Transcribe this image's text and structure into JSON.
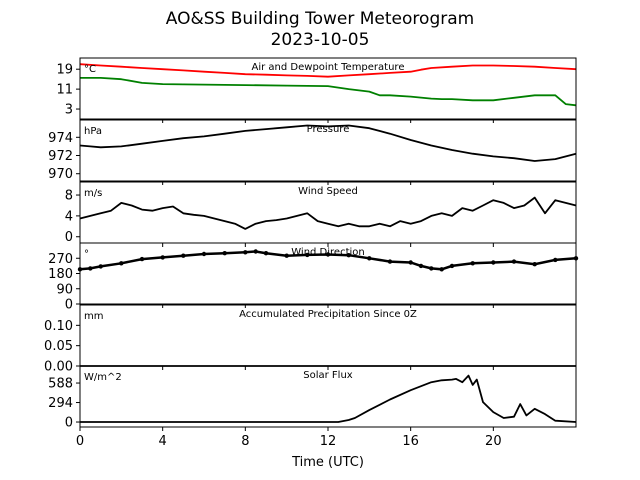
{
  "figure": {
    "title": "AO&SS Building Tower Meteorogram",
    "subtitle": "2023-10-05",
    "xlabel": "Time (UTC)"
  },
  "chart_data": [
    {
      "type": "line",
      "title": "Air and Dewpoint Temperature",
      "unit": "°C",
      "yticks": [
        3,
        11,
        19
      ],
      "ylim": [
        -1,
        23.5
      ],
      "xlim": [
        0,
        24
      ],
      "series": [
        {
          "color": "#ff0000",
          "x": [
            0,
            1,
            2,
            3,
            4,
            5,
            6,
            7,
            8,
            9,
            10,
            11,
            12,
            13,
            14,
            15,
            16,
            16.5,
            17,
            18,
            19,
            20,
            21,
            22,
            23,
            24
          ],
          "y": [
            21,
            20.5,
            20,
            19.5,
            19,
            18.5,
            18,
            17.5,
            17,
            16.8,
            16.5,
            16.3,
            16,
            16.5,
            17,
            17.5,
            18,
            18.8,
            19.5,
            20,
            20.5,
            20.5,
            20.3,
            20,
            19.5,
            19
          ]
        },
        {
          "color": "#008000",
          "x": [
            0,
            1,
            2,
            3,
            4,
            6,
            8,
            10,
            11,
            12,
            13,
            14,
            14.5,
            15,
            16,
            17,
            17.5,
            18,
            19,
            20,
            21,
            22,
            23,
            23.5,
            24
          ],
          "y": [
            15.5,
            15.5,
            15,
            13.5,
            13,
            12.8,
            12.6,
            12.4,
            12.3,
            12.2,
            11,
            10,
            8.5,
            8.5,
            8,
            7.2,
            7,
            7,
            6.5,
            6.5,
            7.5,
            8.5,
            8.5,
            5,
            4.5
          ]
        }
      ]
    },
    {
      "type": "line",
      "title": "Pressure",
      "unit": "hPa",
      "yticks": [
        970,
        972,
        974
      ],
      "ylim": [
        969.2,
        975.9
      ],
      "xlim": [
        0,
        24
      ],
      "series": [
        {
          "color": "#000000",
          "x": [
            0,
            0.5,
            1,
            2,
            3,
            4,
            5,
            6,
            7,
            8,
            9,
            10,
            11,
            12,
            13,
            14,
            15,
            16,
            17,
            18,
            19,
            20,
            21,
            22,
            23,
            24
          ],
          "y": [
            973.1,
            973.0,
            972.9,
            973.0,
            973.3,
            973.6,
            973.9,
            974.1,
            974.4,
            974.7,
            974.9,
            975.1,
            975.3,
            975.2,
            975.3,
            975.0,
            974.4,
            973.7,
            973.1,
            972.6,
            972.2,
            971.9,
            971.7,
            971.4,
            971.6,
            972.2
          ]
        }
      ]
    },
    {
      "type": "line",
      "title": "Wind Speed",
      "unit": "m/s",
      "yticks": [
        0,
        4,
        8
      ],
      "ylim": [
        -1.2,
        10.5
      ],
      "xlim": [
        0,
        24
      ],
      "series": [
        {
          "color": "#000000",
          "x": [
            0,
            0.5,
            1,
            1.5,
            2,
            2.5,
            3,
            3.5,
            4,
            4.5,
            5,
            5.5,
            6,
            6.5,
            7,
            7.5,
            8,
            8.5,
            9,
            9.5,
            10,
            10.5,
            11,
            11.5,
            12,
            12.5,
            13,
            13.5,
            14,
            14.5,
            15,
            15.5,
            16,
            16.5,
            17,
            17.5,
            18,
            18.5,
            19,
            19.5,
            20,
            20.5,
            21,
            21.5,
            22,
            22.5,
            23,
            23.5,
            24
          ],
          "y": [
            3.5,
            4.0,
            4.5,
            5.0,
            6.5,
            6.0,
            5.2,
            5.0,
            5.5,
            5.8,
            4.5,
            4.2,
            4.0,
            3.5,
            3.0,
            2.5,
            1.5,
            2.5,
            3.0,
            3.2,
            3.5,
            4.0,
            4.5,
            3.0,
            2.5,
            2.0,
            2.5,
            2.0,
            2.0,
            2.5,
            2.0,
            3.0,
            2.5,
            3.0,
            4.0,
            4.5,
            4.0,
            5.5,
            5.0,
            6.0,
            7.0,
            6.5,
            5.5,
            6.0,
            7.5,
            4.5,
            7.0,
            6.5,
            6.0
          ]
        }
      ]
    },
    {
      "type": "scatter",
      "title": "Wind Direction",
      "unit": "°",
      "yticks": [
        0,
        90,
        180,
        270
      ],
      "ylim": [
        0,
        360
      ],
      "xlim": [
        0,
        24
      ],
      "series": [
        {
          "color": "#000000",
          "x": [
            0,
            0.5,
            1,
            2,
            3,
            4,
            5,
            6,
            7,
            8,
            8.5,
            9,
            10,
            11,
            12,
            13,
            14,
            15,
            16,
            16.5,
            17,
            17.5,
            18,
            19,
            20,
            21,
            22,
            23,
            24
          ],
          "y": [
            205,
            210,
            222,
            240,
            265,
            275,
            285,
            295,
            300,
            305,
            310,
            300,
            285,
            290,
            292,
            288,
            270,
            250,
            245,
            225,
            210,
            205,
            225,
            240,
            245,
            250,
            235,
            260,
            270
          ]
        }
      ]
    },
    {
      "type": "line",
      "title": "Accumulated Precipitation Since 0Z",
      "unit": "mm",
      "yticks": [
        0.0,
        0.05,
        0.1
      ],
      "ytick_labels": [
        "0.00",
        "0.05",
        "0.10"
      ],
      "ylim": [
        0,
        0.15
      ],
      "xlim": [
        0,
        24
      ],
      "series": [
        {
          "color": "#000000",
          "x": [
            0,
            24
          ],
          "y": [
            0,
            0
          ]
        }
      ]
    },
    {
      "type": "line",
      "title": "Solar Flux",
      "unit": "W/m^2",
      "yticks": [
        0,
        294,
        588
      ],
      "ylim": [
        -75,
        845
      ],
      "xlim": [
        0,
        24
      ],
      "series": [
        {
          "color": "#000000",
          "x": [
            0,
            12.5,
            13,
            13.3,
            14,
            15,
            16,
            16.5,
            17,
            17.5,
            18,
            18.2,
            18.5,
            18.8,
            19,
            19.2,
            19.5,
            20,
            20.5,
            21,
            21.3,
            21.6,
            22,
            22.5,
            23,
            24
          ],
          "y": [
            0,
            0,
            30,
            60,
            180,
            340,
            480,
            540,
            600,
            630,
            640,
            650,
            600,
            700,
            560,
            640,
            300,
            150,
            60,
            80,
            270,
            100,
            200,
            120,
            20,
            0
          ]
        }
      ]
    }
  ],
  "xaxis": {
    "ticks": [
      0,
      4,
      8,
      12,
      16,
      20
    ],
    "range": [
      0,
      24
    ]
  }
}
